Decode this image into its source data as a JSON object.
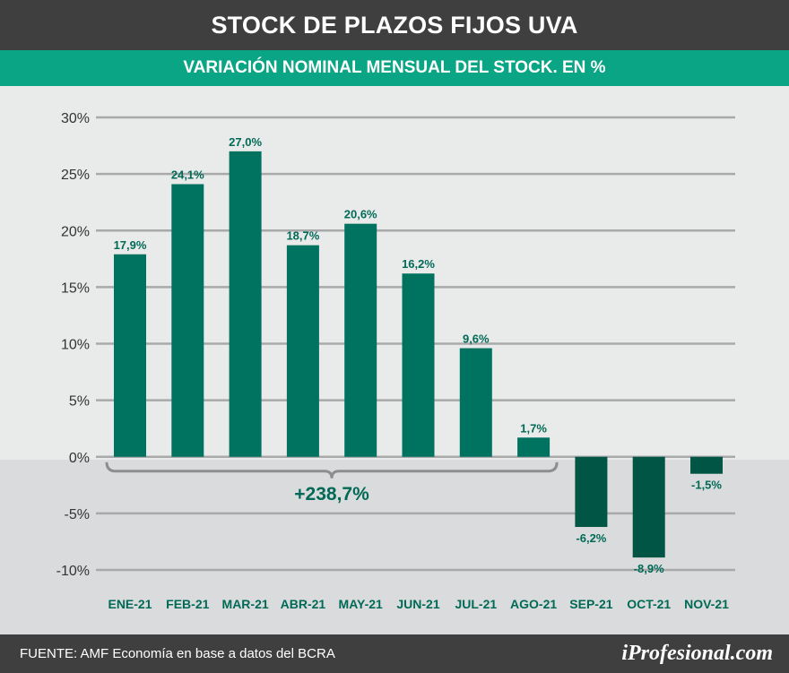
{
  "header": {
    "title": "STOCK DE PLAZOS FIJOS UVA"
  },
  "subheader": {
    "title": "VARIACIÓN NOMINAL MENSUAL DEL STOCK. EN %"
  },
  "footer": {
    "source": "FUENTE: AMF Economía en base a datos del BCRA",
    "brand": "iProfesional.com"
  },
  "colors": {
    "positive_bar": "#007360",
    "negative_bar": "#005544",
    "label_text": "#006a57",
    "header_bg": "#3f3f3f",
    "subheader_bg": "#0aa585",
    "grid": "#a9a9a9"
  },
  "chart_data": {
    "type": "bar",
    "categories": [
      "ENE-21",
      "FEB-21",
      "MAR-21",
      "ABR-21",
      "MAY-21",
      "JUN-21",
      "JUL-21",
      "AGO-21",
      "SEP-21",
      "OCT-21",
      "NOV-21"
    ],
    "values": [
      17.9,
      24.1,
      27.0,
      18.7,
      20.6,
      16.2,
      9.6,
      1.7,
      -6.2,
      -8.9,
      -1.5
    ],
    "data_labels": [
      "17,9%",
      "24,1%",
      "27,0%",
      "18,7%",
      "20,6%",
      "16,2%",
      "9,6%",
      "1,7%",
      "-6,2%",
      "-8,9%",
      "-1,5%"
    ],
    "yticks": [
      30,
      25,
      20,
      15,
      10,
      5,
      0,
      -5,
      -10
    ],
    "ytick_labels": [
      "30%",
      "25%",
      "20%",
      "15%",
      "10%",
      "5%",
      "0%",
      "-5%",
      "-10%"
    ],
    "ylim": [
      -10,
      30
    ],
    "grid": true,
    "annotation": {
      "text": "+238,7%",
      "from_category": "ENE-21",
      "to_category": "AGO-21"
    }
  }
}
